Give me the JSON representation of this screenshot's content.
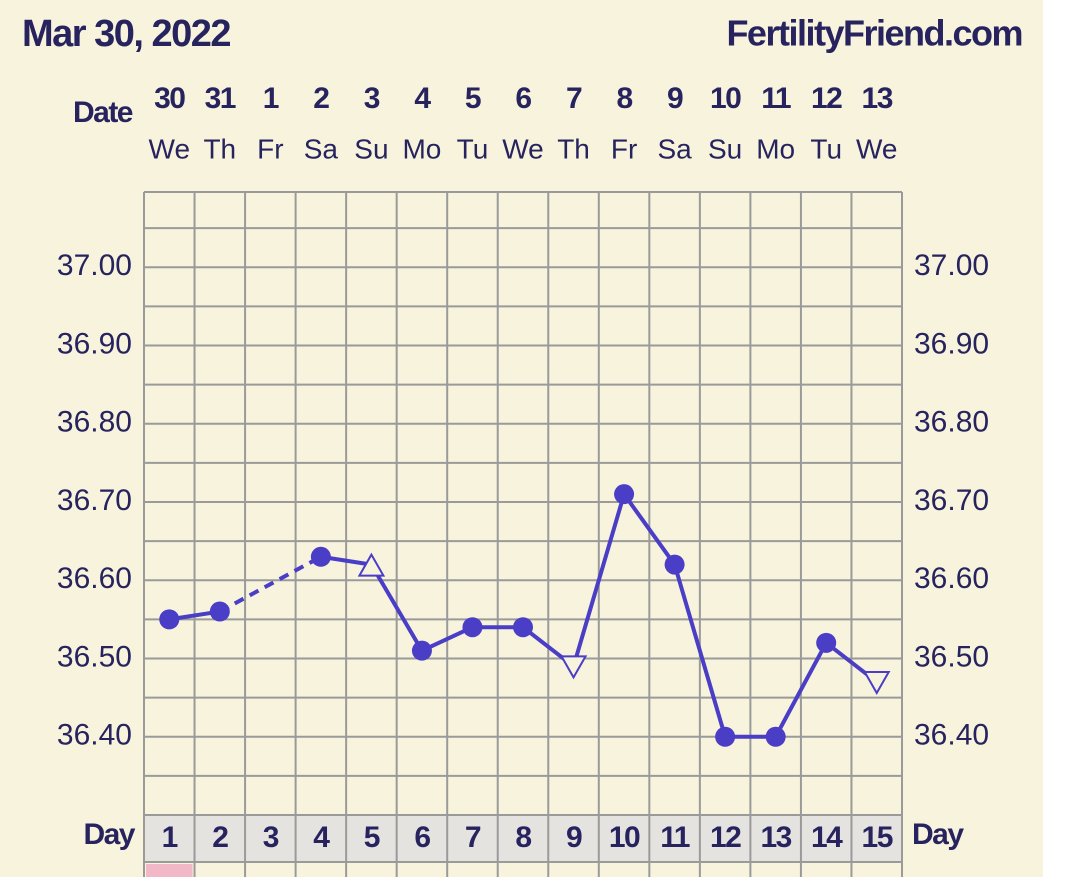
{
  "chart_data": {
    "type": "line",
    "title": "Mar 30, 2022",
    "site": "FertilityFriend.com",
    "date_label": "Date",
    "day_label": "Day",
    "categories": [
      "30",
      "31",
      "1",
      "2",
      "3",
      "4",
      "5",
      "6",
      "7",
      "8",
      "9",
      "10",
      "11",
      "12",
      "13"
    ],
    "weekdays": [
      "We",
      "Th",
      "Fr",
      "Sa",
      "Su",
      "Mo",
      "Tu",
      "We",
      "Th",
      "Fr",
      "Sa",
      "Su",
      "Mo",
      "Tu",
      "We"
    ],
    "days": [
      1,
      2,
      3,
      4,
      5,
      6,
      7,
      8,
      9,
      10,
      11,
      12,
      13,
      14,
      15
    ],
    "series": [
      {
        "color": "#4a3dc6",
        "values": [
          36.55,
          36.56,
          null,
          36.63,
          36.62,
          36.51,
          36.54,
          36.54,
          36.49,
          36.71,
          36.62,
          36.4,
          36.4,
          36.52,
          36.47
        ],
        "markers": [
          "circle",
          "circle",
          null,
          "circle",
          "triangle-up",
          "circle",
          "circle",
          "circle",
          "triangle-down",
          "circle",
          "circle",
          "circle",
          "circle",
          "circle",
          "triangle-down"
        ]
      }
    ],
    "ylim": [
      36.3,
      37.1
    ],
    "yticks": [
      {
        "value": 37.0,
        "label": "37.00"
      },
      {
        "value": 36.9,
        "label": "36.90"
      },
      {
        "value": 36.8,
        "label": "36.80"
      },
      {
        "value": 36.7,
        "label": "36.70"
      },
      {
        "value": 36.6,
        "label": "36.60"
      },
      {
        "value": 36.5,
        "label": "36.50"
      },
      {
        "value": 36.4,
        "label": "36.40"
      }
    ],
    "yminorticks": [
      37.05,
      36.95,
      36.85,
      36.75,
      36.65,
      36.55,
      36.45,
      36.35
    ],
    "grid": true
  }
}
